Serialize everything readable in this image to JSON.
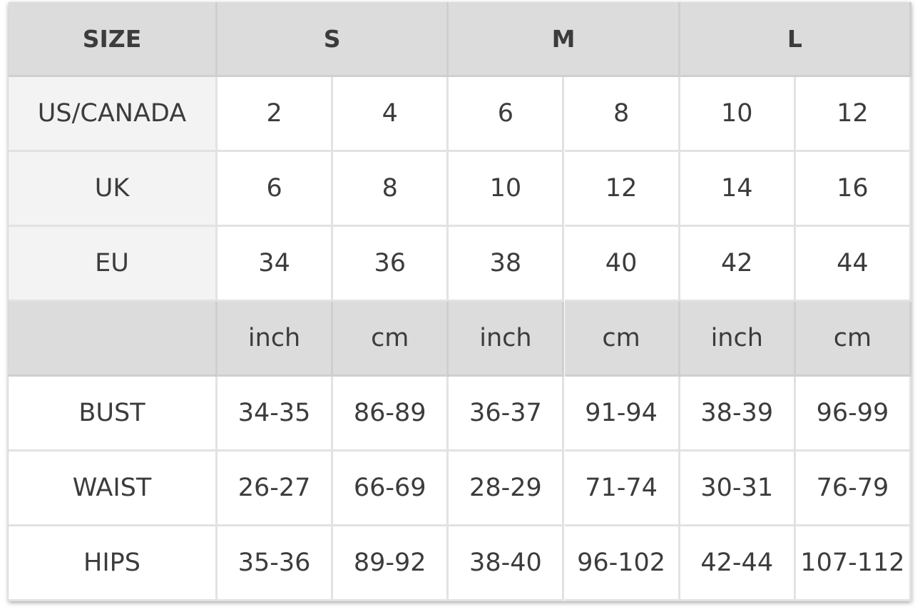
{
  "table": {
    "header": [
      "SIZE",
      "S",
      "M",
      "L"
    ],
    "rows": [
      {
        "label": "US/CANADA",
        "values": [
          "2",
          "4",
          "6",
          "8",
          "10",
          "12"
        ]
      },
      {
        "label": "UK",
        "values": [
          "6",
          "8",
          "10",
          "12",
          "14",
          "16"
        ]
      },
      {
        "label": "EU",
        "values": [
          "34",
          "36",
          "38",
          "40",
          "42",
          "44"
        ]
      }
    ],
    "units": [
      "inch",
      "cm",
      "inch",
      "cm",
      "inch",
      "cm"
    ],
    "measurements": [
      {
        "label": "BUST",
        "values": [
          "34-35",
          "86-89",
          "36-37",
          "91-94",
          "38-39",
          "96-99"
        ]
      },
      {
        "label": "WAIST",
        "values": [
          "26-27",
          "66-69",
          "28-29",
          "71-74",
          "30-31",
          "76-79"
        ]
      },
      {
        "label": "HIPS",
        "values": [
          "35-36",
          "89-92",
          "38-40",
          "96-102",
          "42-44",
          "107-112"
        ]
      }
    ]
  }
}
